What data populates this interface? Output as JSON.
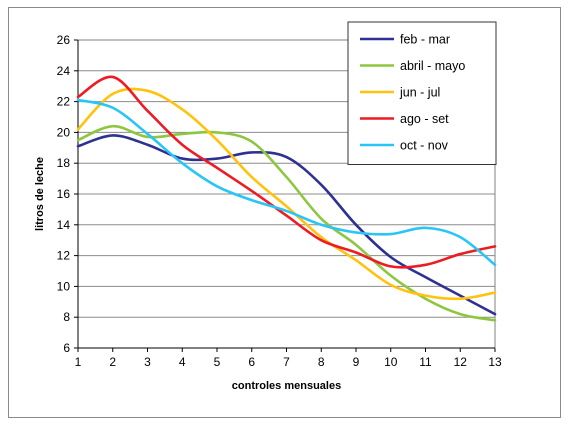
{
  "chart_data": {
    "type": "line",
    "title": "",
    "xlabel": "controles mensuales",
    "ylabel": "litros de leche",
    "x": [
      1,
      2,
      3,
      4,
      5,
      6,
      7,
      8,
      9,
      10,
      11,
      12,
      13
    ],
    "xlim": [
      1,
      13
    ],
    "ylim": [
      6,
      26
    ],
    "y_ticks": [
      6,
      8,
      10,
      12,
      14,
      16,
      18,
      20,
      22,
      24,
      26
    ],
    "grid": "horizontal",
    "legend_position": "top-right",
    "series": [
      {
        "name": "feb - mar",
        "color": "#2e3192",
        "values": [
          19.1,
          19.8,
          19.2,
          18.3,
          18.3,
          18.7,
          18.4,
          16.6,
          14.0,
          11.9,
          10.6,
          9.4,
          8.2
        ]
      },
      {
        "name": "abril - mayo",
        "color": "#8dc63f",
        "values": [
          19.5,
          20.4,
          19.7,
          19.9,
          20.0,
          19.4,
          17.1,
          14.4,
          12.7,
          10.7,
          9.2,
          8.2,
          7.8
        ]
      },
      {
        "name": "jun - jul",
        "color": "#ffc20e",
        "values": [
          20.2,
          22.5,
          22.7,
          21.5,
          19.5,
          17.1,
          15.2,
          13.2,
          11.7,
          10.1,
          9.4,
          9.2,
          9.6
        ]
      },
      {
        "name": "ago - set",
        "color": "#ed1c24",
        "values": [
          22.3,
          23.6,
          21.4,
          19.2,
          17.7,
          16.2,
          14.6,
          13.0,
          12.2,
          11.3,
          11.4,
          12.1,
          12.6
        ]
      },
      {
        "name": "oct - nov",
        "color": "#29c5f6",
        "values": [
          22.1,
          21.6,
          19.9,
          18.0,
          16.5,
          15.6,
          14.9,
          14.0,
          13.5,
          13.4,
          13.8,
          13.2,
          11.4
        ]
      }
    ]
  }
}
